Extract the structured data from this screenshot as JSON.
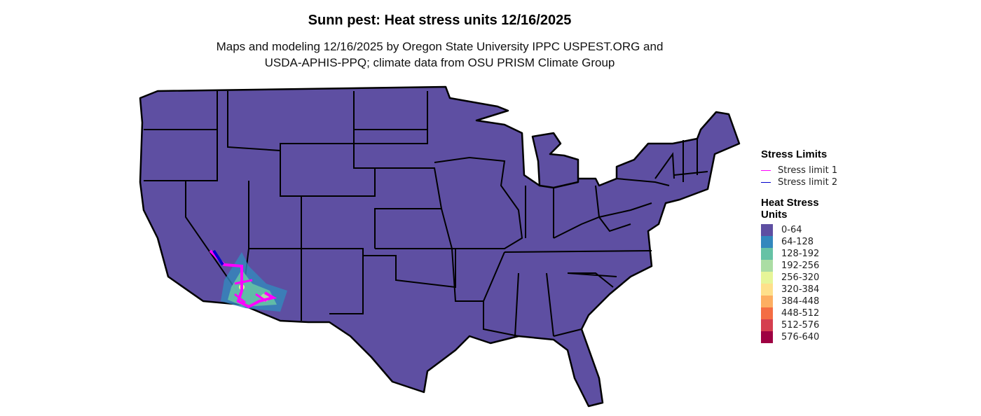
{
  "title": "Sunn pest: Heat stress units 12/16/2025",
  "subtitle_lines": [
    "Maps and modeling 12/16/2025 by Oregon State University IPPC USPEST.ORG and",
    "USDA-APHIS-PPQ; climate data from OSU PRISM Climate Group"
  ],
  "map": {
    "base_color": "#5E4FA2",
    "border_color": "#000000"
  },
  "legend": {
    "stress_title": "Stress Limits",
    "stress_items": [
      {
        "label": "Stress limit 1",
        "color": "#FF00FF"
      },
      {
        "label": "Stress limit 2",
        "color": "#0000CD"
      }
    ],
    "heat_title_lines": [
      "Heat Stress",
      "Units"
    ],
    "heat_items": [
      {
        "label": "0-64",
        "color": "#5E4FA2"
      },
      {
        "label": "64-128",
        "color": "#3288BD"
      },
      {
        "label": "128-192",
        "color": "#66C2A5"
      },
      {
        "label": "192-256",
        "color": "#ABDDA4"
      },
      {
        "label": "256-320",
        "color": "#E6F598"
      },
      {
        "label": "320-384",
        "color": "#FEE08B"
      },
      {
        "label": "384-448",
        "color": "#FDAE61"
      },
      {
        "label": "448-512",
        "color": "#F46D43"
      },
      {
        "label": "512-576",
        "color": "#D53E4F"
      },
      {
        "label": "576-640",
        "color": "#9E0142"
      }
    ]
  }
}
